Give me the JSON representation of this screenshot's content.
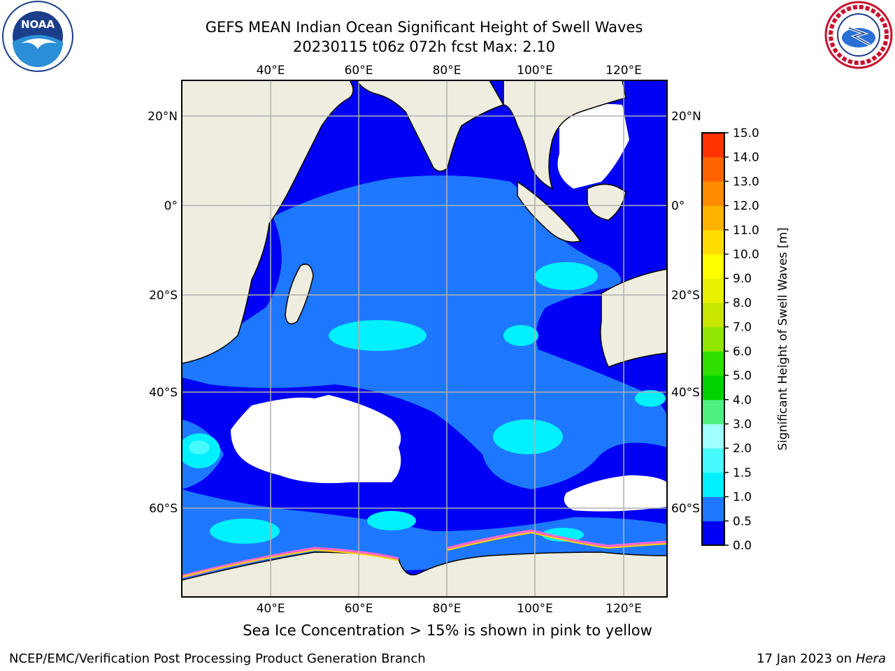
{
  "header": {
    "title_line1": "GEFS MEAN Indian Ocean Significant Height of Swell Waves",
    "title_line2": "20230115 t06z 072h fcst   Max: 2.10"
  },
  "logos": {
    "left": {
      "icon": "noaa-logo-icon",
      "text": "NOAA"
    },
    "right": {
      "icon": "national-weather-service-logo-icon",
      "ring_text": "NATIONAL WEATHER SERVICE"
    }
  },
  "map": {
    "lon_ticks": [
      "40°E",
      "60°E",
      "80°E",
      "100°E",
      "120°E"
    ],
    "lat_ticks_left": [
      "20°N",
      "0°",
      "20°S",
      "40°S",
      "60°S"
    ],
    "lat_ticks_right": [
      "20°N",
      "0°",
      "20°S",
      "40°S",
      "60°S"
    ],
    "gridlines": true,
    "colors": {
      "land": "#efeddf",
      "ice_region": "#ffffff",
      "swell_0_0_5": "#0000f5",
      "swell_0_5_1": "#1e78ff",
      "swell_1_1_5": "#00f0ff",
      "swell_1_5_2": "#46faff",
      "sea_ice_edge": "#ff66cc"
    }
  },
  "colorbar": {
    "label": "Significant Height of Swell Waves [m]",
    "ticks": [
      "0.0",
      "0.5",
      "1.0",
      "1.5",
      "2.0",
      "3.0",
      "4.0",
      "5.0",
      "6.0",
      "7.0",
      "8.0",
      "9.0",
      "10.0",
      "11.0",
      "12.0",
      "13.0",
      "14.0",
      "15.0"
    ],
    "colors": [
      "#0000f5",
      "#1e78ff",
      "#00f0ff",
      "#46faff",
      "#a0ffff",
      "#50f080",
      "#00d200",
      "#30e000",
      "#90e600",
      "#c8e600",
      "#e6f000",
      "#ffff00",
      "#ffdc00",
      "#ffb400",
      "#ff8c00",
      "#ff6400",
      "#ff3200",
      "#ff0000"
    ]
  },
  "caption": "Sea Ice Concentration > 15% is shown in pink to yellow",
  "footer": {
    "left": "NCEP/EMC/Verification Post Processing Product Generation Branch",
    "right_date": "17 Jan 2023 on",
    "right_machine": "Hera"
  }
}
